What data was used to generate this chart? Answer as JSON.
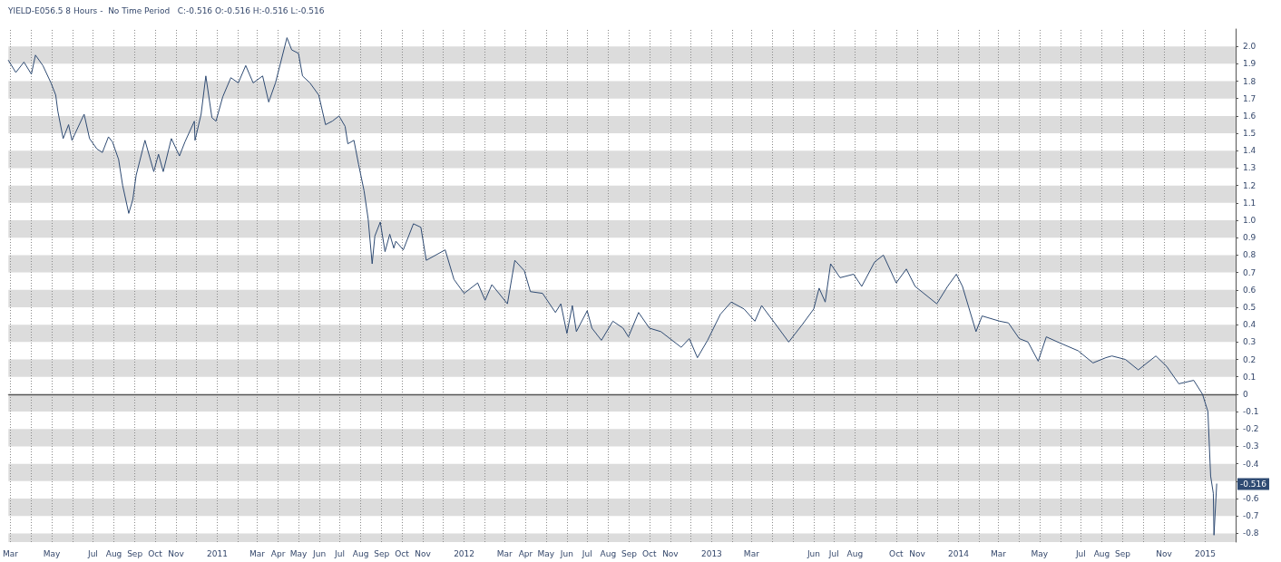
{
  "chart_data": {
    "type": "line",
    "title": "YIELD-E056.5 8 Hours -  No Time Period   C:-0.516 O:-0.516 H:-0.516 L:-0.516",
    "x": [
      "2010-02-26",
      "2010-03-09",
      "2010-03-21",
      "2010-04-01",
      "2010-04-07",
      "2010-04-18",
      "2010-04-30",
      "2010-05-07",
      "2010-05-10",
      "2010-05-18",
      "2010-05-26",
      "2010-05-31",
      "2010-06-18",
      "2010-06-26",
      "2010-07-07",
      "2010-07-15",
      "2010-07-24",
      "2010-07-30",
      "2010-08-08",
      "2010-08-14",
      "2010-08-23",
      "2010-08-29",
      "2010-09-03",
      "2010-09-16",
      "2010-09-29",
      "2010-10-06",
      "2010-10-13",
      "2010-10-25",
      "2010-11-06",
      "2010-11-14",
      "2010-11-28",
      "2010-11-29",
      "2010-12-08",
      "2010-12-15",
      "2010-12-24",
      "2010-12-30",
      "2011-01-09",
      "2011-01-21",
      "2011-02-01",
      "2011-02-12",
      "2011-02-23",
      "2011-03-09",
      "2011-03-18",
      "2011-03-28",
      "2011-04-14",
      "2011-04-21",
      "2011-05-01",
      "2011-05-07",
      "2011-05-18",
      "2011-05-31",
      "2011-06-10",
      "2011-06-20",
      "2011-06-30",
      "2011-07-09",
      "2011-07-13",
      "2011-07-22",
      "2011-07-29",
      "2011-08-06",
      "2011-08-12",
      "2011-08-18",
      "2011-08-22",
      "2011-08-30",
      "2011-09-06",
      "2011-09-13",
      "2011-09-19",
      "2011-09-22",
      "2011-10-03",
      "2011-10-18",
      "2011-10-29",
      "2011-11-06",
      "2011-12-04",
      "2011-12-17",
      "2012-01-01",
      "2012-01-21",
      "2012-02-01",
      "2012-02-11",
      "2012-03-05",
      "2012-03-16",
      "2012-03-30",
      "2012-04-08",
      "2012-04-26",
      "2012-05-15",
      "2012-05-23",
      "2012-06-01",
      "2012-06-09",
      "2012-06-15",
      "2012-07-01",
      "2012-07-08",
      "2012-07-22",
      "2012-08-08",
      "2012-08-23",
      "2012-08-31",
      "2012-09-15",
      "2012-10-01",
      "2012-10-18",
      "2012-11-17",
      "2012-11-29",
      "2012-12-11",
      "2012-12-26",
      "2013-01-14",
      "2013-01-30",
      "2013-02-18",
      "2013-03-06",
      "2013-03-16",
      "2013-04-08",
      "2013-04-25",
      "2013-05-15",
      "2013-06-01",
      "2013-06-09",
      "2013-06-18",
      "2013-06-26",
      "2013-07-10",
      "2013-07-30",
      "2013-08-11",
      "2013-08-30",
      "2013-09-12",
      "2013-10-01",
      "2013-10-16",
      "2013-10-29",
      "2013-11-30",
      "2013-12-16",
      "2013-12-29",
      "2014-01-07",
      "2014-01-27",
      "2014-02-05",
      "2014-03-03",
      "2014-03-16",
      "2014-04-01",
      "2014-04-14",
      "2014-04-29",
      "2014-05-11",
      "2014-05-28",
      "2014-06-27",
      "2014-07-19",
      "2014-08-07",
      "2014-08-16",
      "2014-09-05",
      "2014-09-24",
      "2014-10-20",
      "2014-11-05",
      "2014-11-23",
      "2014-12-15",
      "2014-12-28",
      "2015-01-05",
      "2015-01-09",
      "2015-01-13",
      "2015-01-14",
      "2015-01-18"
    ],
    "series": [
      {
        "color": "#2f4b73",
        "values": [
          1.92,
          1.85,
          1.91,
          1.84,
          1.95,
          1.89,
          1.79,
          1.72,
          1.63,
          1.47,
          1.55,
          1.46,
          1.61,
          1.47,
          1.41,
          1.39,
          1.48,
          1.45,
          1.35,
          1.2,
          1.04,
          1.12,
          1.26,
          1.46,
          1.28,
          1.38,
          1.28,
          1.47,
          1.37,
          1.45,
          1.57,
          1.46,
          1.61,
          1.83,
          1.59,
          1.57,
          1.71,
          1.82,
          1.79,
          1.89,
          1.79,
          1.83,
          1.68,
          1.79,
          2.05,
          1.98,
          1.96,
          1.83,
          1.79,
          1.72,
          1.55,
          1.57,
          1.6,
          1.54,
          1.44,
          1.46,
          1.32,
          1.17,
          1.01,
          0.75,
          0.91,
          0.99,
          0.82,
          0.92,
          0.84,
          0.88,
          0.83,
          0.98,
          0.96,
          0.77,
          0.83,
          0.66,
          0.58,
          0.64,
          0.54,
          0.63,
          0.52,
          0.77,
          0.71,
          0.59,
          0.58,
          0.47,
          0.52,
          0.35,
          0.51,
          0.36,
          0.48,
          0.38,
          0.31,
          0.42,
          0.38,
          0.33,
          0.47,
          0.38,
          0.36,
          0.27,
          0.32,
          0.21,
          0.31,
          0.46,
          0.53,
          0.49,
          0.42,
          0.51,
          0.39,
          0.3,
          0.4,
          0.49,
          0.61,
          0.53,
          0.75,
          0.67,
          0.69,
          0.62,
          0.76,
          0.8,
          0.64,
          0.72,
          0.62,
          0.52,
          0.62,
          0.69,
          0.62,
          0.36,
          0.45,
          0.42,
          0.41,
          0.32,
          0.3,
          0.19,
          0.33,
          0.3,
          0.25,
          0.18,
          0.21,
          0.22,
          0.2,
          0.14,
          0.22,
          0.16,
          0.06,
          0.08,
          0.0,
          -0.1,
          -0.47,
          -0.57,
          -0.81,
          -0.516
        ]
      }
    ],
    "xlim": [
      "2010-02-26",
      "2015-02-15"
    ],
    "xticks": [
      {
        "value": "2010-03-01",
        "label": "Mar"
      },
      {
        "value": "2010-04-01",
        "label": null
      },
      {
        "value": "2010-05-01",
        "label": "May"
      },
      {
        "value": "2010-06-01",
        "label": null
      },
      {
        "value": "2010-07-01",
        "label": "Jul"
      },
      {
        "value": "2010-08-01",
        "label": "Aug"
      },
      {
        "value": "2010-09-01",
        "label": "Sep"
      },
      {
        "value": "2010-10-01",
        "label": "Oct"
      },
      {
        "value": "2010-11-01",
        "label": "Nov"
      },
      {
        "value": "2010-12-01",
        "label": null
      },
      {
        "value": "2011-01-01",
        "label": "2011"
      },
      {
        "value": "2011-02-01",
        "label": null
      },
      {
        "value": "2011-03-01",
        "label": "Mar"
      },
      {
        "value": "2011-04-01",
        "label": "Apr"
      },
      {
        "value": "2011-05-01",
        "label": "May"
      },
      {
        "value": "2011-06-01",
        "label": "Jun"
      },
      {
        "value": "2011-07-01",
        "label": "Jul"
      },
      {
        "value": "2011-08-01",
        "label": "Aug"
      },
      {
        "value": "2011-09-01",
        "label": "Sep"
      },
      {
        "value": "2011-10-01",
        "label": "Oct"
      },
      {
        "value": "2011-11-01",
        "label": "Nov"
      },
      {
        "value": "2011-12-01",
        "label": null
      },
      {
        "value": "2012-01-01",
        "label": "2012"
      },
      {
        "value": "2012-02-01",
        "label": null
      },
      {
        "value": "2012-03-01",
        "label": "Mar"
      },
      {
        "value": "2012-04-01",
        "label": "Apr"
      },
      {
        "value": "2012-05-01",
        "label": "May"
      },
      {
        "value": "2012-06-01",
        "label": "Jun"
      },
      {
        "value": "2012-07-01",
        "label": "Jul"
      },
      {
        "value": "2012-08-01",
        "label": "Aug"
      },
      {
        "value": "2012-09-01",
        "label": "Sep"
      },
      {
        "value": "2012-10-01",
        "label": "Oct"
      },
      {
        "value": "2012-11-01",
        "label": "Nov"
      },
      {
        "value": "2012-12-01",
        "label": null
      },
      {
        "value": "2013-01-01",
        "label": "2013"
      },
      {
        "value": "2013-02-01",
        "label": null
      },
      {
        "value": "2013-03-01",
        "label": "Mar"
      },
      {
        "value": "2013-04-01",
        "label": null
      },
      {
        "value": "2013-05-01",
        "label": null
      },
      {
        "value": "2013-06-01",
        "label": "Jun"
      },
      {
        "value": "2013-07-01",
        "label": "Jul"
      },
      {
        "value": "2013-08-01",
        "label": "Aug"
      },
      {
        "value": "2013-09-01",
        "label": null
      },
      {
        "value": "2013-10-01",
        "label": "Oct"
      },
      {
        "value": "2013-11-01",
        "label": "Nov"
      },
      {
        "value": "2013-12-01",
        "label": null
      },
      {
        "value": "2014-01-01",
        "label": "2014"
      },
      {
        "value": "2014-02-01",
        "label": null
      },
      {
        "value": "2014-03-01",
        "label": "Mar"
      },
      {
        "value": "2014-04-01",
        "label": null
      },
      {
        "value": "2014-05-01",
        "label": "May"
      },
      {
        "value": "2014-06-01",
        "label": null
      },
      {
        "value": "2014-07-01",
        "label": "Jul"
      },
      {
        "value": "2014-08-01",
        "label": "Aug"
      },
      {
        "value": "2014-09-01",
        "label": "Sep"
      },
      {
        "value": "2014-10-01",
        "label": null
      },
      {
        "value": "2014-11-01",
        "label": "Nov"
      },
      {
        "value": "2014-12-01",
        "label": null
      },
      {
        "value": "2015-01-01",
        "label": "2015"
      }
    ],
    "ylim": [
      -0.85,
      2.1
    ],
    "yticks": [
      {
        "value": 2,
        "label": "2.0"
      },
      1.9,
      1.8,
      1.7,
      1.6,
      1.5,
      1.4,
      1.3,
      1.2,
      1.1,
      {
        "value": 1,
        "label": "1.0"
      },
      0.9,
      0.8,
      0.7,
      0.6,
      0.5,
      0.4,
      0.3,
      0.2,
      0.1,
      0,
      -0.1,
      -0.2,
      -0.3,
      -0.4,
      {
        "value": -0.5,
        "label": null
      },
      -0.6,
      -0.7,
      -0.8
    ],
    "grid": true,
    "marker": "none",
    "line_style": "solid",
    "ref_lines": [
      {
        "axis": "y",
        "value": 0,
        "color": "#555555"
      }
    ],
    "annotations": [
      {
        "text": "-0.516",
        "x": "2015-01-18",
        "y": -0.516
      }
    ]
  }
}
